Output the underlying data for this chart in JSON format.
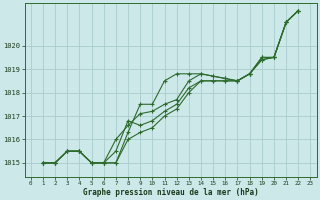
{
  "title": "Graphe pression niveau de la mer (hPa)",
  "bg_color": "#cce8e8",
  "grid_color": "#aacccc",
  "line_color": "#2d6b2d",
  "text_color": "#1a3a1a",
  "xlim": [
    -0.5,
    23.5
  ],
  "ylim": [
    1014.4,
    1021.8
  ],
  "yticks": [
    1015,
    1016,
    1017,
    1018,
    1019,
    1020
  ],
  "xticks": [
    0,
    1,
    2,
    3,
    4,
    5,
    6,
    7,
    8,
    9,
    10,
    11,
    12,
    13,
    14,
    15,
    16,
    17,
    18,
    19,
    20,
    21,
    22,
    23
  ],
  "series": [
    [
      0,
      1015.0,
      1015.0,
      1015.5,
      1015.5,
      1015.0,
      1015.0,
      1015.0,
      1016.3,
      1017.5,
      1017.5,
      1018.5,
      1018.8,
      1018.8,
      1018.8,
      1018.7,
      1018.6,
      1018.5,
      1018.8,
      1019.5,
      1019.5,
      1021.0,
      1021.5
    ],
    [
      0,
      1015.0,
      1015.0,
      1015.5,
      1015.5,
      1015.0,
      1015.0,
      1016.0,
      1016.6,
      1017.1,
      1017.2,
      1017.5,
      1017.7,
      1018.5,
      1018.8,
      1018.7,
      1018.6,
      1018.5,
      1018.8,
      1019.5,
      1019.5,
      1021.0,
      1021.5
    ],
    [
      0,
      1015.0,
      1015.0,
      1015.5,
      1015.5,
      1015.0,
      1015.0,
      1015.5,
      1016.8,
      1016.6,
      1016.8,
      1017.2,
      1017.5,
      1018.2,
      1018.5,
      1018.5,
      1018.5,
      1018.5,
      1018.8,
      1019.4,
      1019.5,
      1021.0,
      1021.5
    ],
    [
      0,
      1015.0,
      1015.0,
      1015.5,
      1015.5,
      1015.0,
      1015.0,
      1015.0,
      1016.0,
      1016.3,
      1016.5,
      1017.0,
      1017.3,
      1018.0,
      1018.5,
      1018.5,
      1018.5,
      1018.5,
      1018.8,
      1019.4,
      1019.5,
      1021.0,
      1021.5
    ]
  ],
  "x_start": 1
}
